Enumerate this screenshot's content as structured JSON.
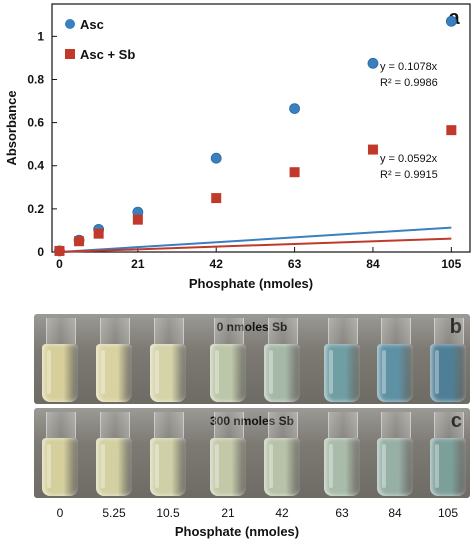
{
  "chart_data": {
    "type": "scatter",
    "panel_label": "a",
    "xlabel": "Phosphate (nmoles)",
    "ylabel": "Absorbance",
    "xticks": [
      0,
      21,
      42,
      63,
      84,
      105
    ],
    "yticks": [
      0,
      0.2,
      0.4,
      0.6,
      0.8,
      1
    ],
    "xlim": [
      -2,
      110
    ],
    "ylim": [
      0,
      1.15
    ],
    "grid": false,
    "legend_position": "top-left",
    "series": [
      {
        "name": "Asc",
        "color": "#3a7fbf",
        "marker": "circle",
        "x": [
          0,
          5.25,
          10.5,
          21,
          42,
          63,
          84,
          105
        ],
        "y": [
          0.005,
          0.055,
          0.105,
          0.185,
          0.435,
          0.665,
          0.875,
          1.07
        ],
        "fit_slope": 0.1078,
        "fit_equation": "y = 0.1078x",
        "r_squared": "R² = 0.9986"
      },
      {
        "name": "Asc + Sb",
        "color": "#c0392b",
        "marker": "square",
        "x": [
          0,
          5.25,
          10.5,
          21,
          42,
          63,
          84,
          105
        ],
        "y": [
          0.005,
          0.05,
          0.085,
          0.15,
          0.25,
          0.37,
          0.475,
          0.565
        ],
        "fit_slope": 0.0592,
        "fit_equation": "y = 0.0592x",
        "r_squared": "R² = 0.9915"
      }
    ]
  },
  "photos": {
    "b": {
      "tag": "b",
      "label": "0 nmoles Sb",
      "colors": [
        "#d6cf9a",
        "#d9d3a3",
        "#d5d3a8",
        "#bcc6a8",
        "#a6b8a8",
        "#6f9ea3",
        "#5e91a4",
        "#4f7f96"
      ]
    },
    "c": {
      "tag": "c",
      "label": "300 nmoles Sb",
      "colors": [
        "#d4cf9c",
        "#d3d0a2",
        "#cfd0a7",
        "#c3c9a8",
        "#b7c2a8",
        "#a9bba9",
        "#97b0a6",
        "#7d9f9a"
      ]
    }
  },
  "bottom_axis": {
    "title": "Phosphate (nmoles)",
    "ticks": [
      "0",
      "5.25",
      "10.5",
      "21",
      "42",
      "63",
      "84",
      "105"
    ]
  }
}
